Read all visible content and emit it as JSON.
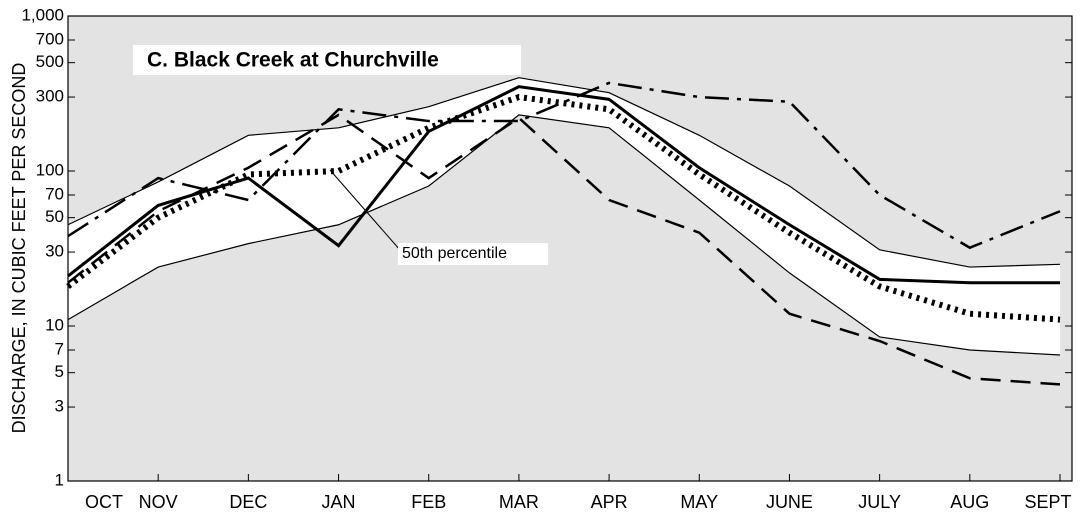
{
  "chart_data": {
    "type": "line",
    "title": "C. Black Creek at Churchville",
    "y_label": "DISCHARGE, IN CUBIC FEET PER SECOND",
    "annotation": "50th percentile",
    "categories": [
      "OCT",
      "NOV",
      "DEC",
      "JAN",
      "FEB",
      "MAR",
      "APR",
      "MAY",
      "JUNE",
      "JULY",
      "AUG",
      "SEPT"
    ],
    "log_scale": true,
    "ylim": [
      1,
      1000
    ],
    "yticks": [
      1,
      3,
      5,
      7,
      10,
      30,
      50,
      70,
      100,
      300,
      500,
      700,
      {
        "value": 1000,
        "label": "1,000"
      }
    ],
    "series": [
      {
        "color": "#000000",
        "style": "thin",
        "values": [
          45,
          85,
          170,
          190,
          260,
          400,
          320,
          170,
          80,
          31,
          24,
          25
        ]
      },
      {
        "color": "#000000",
        "style": "thin",
        "values": [
          11,
          24,
          34,
          45,
          80,
          230,
          190,
          65,
          22,
          8.5,
          7,
          6.5
        ]
      },
      {
        "color": "#000000",
        "style": "solid",
        "values": [
          21,
          60,
          90,
          33,
          180,
          350,
          290,
          105,
          45,
          20,
          19,
          19
        ]
      },
      {
        "color": "#000000",
        "style": "dotted",
        "values": [
          18,
          50,
          95,
          100,
          190,
          300,
          250,
          95,
          40,
          18,
          12,
          11
        ]
      },
      {
        "color": "#000000",
        "style": "dashed",
        "values": [
          19,
          55,
          105,
          230,
          90,
          220,
          65,
          40,
          12,
          8,
          4.6,
          4.2
        ]
      },
      {
        "color": "#000000",
        "style": "dashdot",
        "values": [
          38,
          90,
          65,
          250,
          210,
          210,
          370,
          300,
          280,
          70,
          32,
          55
        ]
      }
    ]
  }
}
